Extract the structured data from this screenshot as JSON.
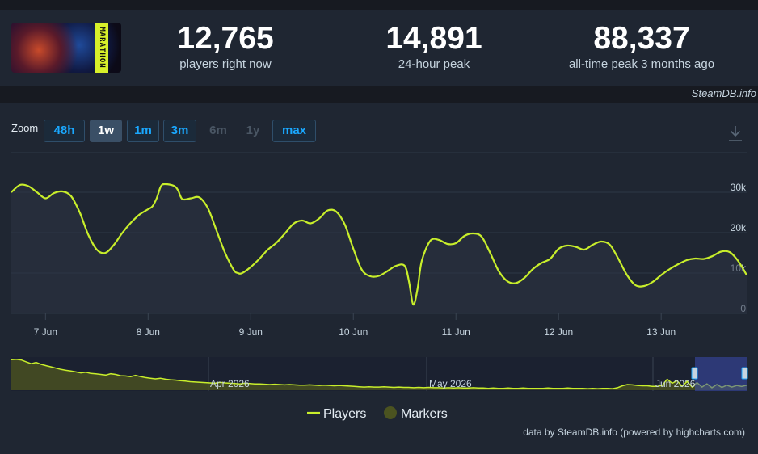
{
  "stats": [
    {
      "value": "12,765",
      "label": "players right now"
    },
    {
      "value": "14,891",
      "label": "24-hour peak"
    },
    {
      "value": "88,337",
      "label": "all-time peak 3 months ago"
    }
  ],
  "game": {
    "logo_text": "MARATHON"
  },
  "credit_top": "SteamDB.info",
  "zoom": {
    "label": "Zoom",
    "buttons": [
      {
        "label": "48h",
        "state": "normal"
      },
      {
        "label": "1w",
        "state": "active"
      },
      {
        "label": "1m",
        "state": "normal"
      },
      {
        "label": "3m",
        "state": "normal"
      },
      {
        "label": "6m",
        "state": "disabled"
      },
      {
        "label": "1y",
        "state": "disabled"
      },
      {
        "label": "max",
        "state": "normal"
      }
    ]
  },
  "colors": {
    "series": "#c8ee2b",
    "grid": "#2e3846",
    "navigator_fill": "#4b5320",
    "navigator_window": "#3d4fb0",
    "markers": "#4b5320",
    "link": "#1aa8ff"
  },
  "chart_data": {
    "type": "line",
    "title": "",
    "xlabel": "",
    "ylabel": "",
    "ylim": [
      0,
      30000
    ],
    "yticks": [
      0,
      10000,
      20000,
      30000
    ],
    "ytick_labels": [
      "0",
      "10k",
      "20k",
      "30k"
    ],
    "grid": true,
    "x_start_hour": -8,
    "x_end_hour": 164,
    "xtick_hours": [
      0,
      24,
      48,
      72,
      96,
      120,
      144
    ],
    "xtick_labels": [
      "7 Jun",
      "8 Jun",
      "9 Jun",
      "10 Jun",
      "11 Jun",
      "12 Jun",
      "13 Jun"
    ],
    "legend_position": "bottom-center",
    "legend": [
      {
        "name": "Players",
        "kind": "line"
      },
      {
        "name": "Markers",
        "kind": "dot"
      }
    ],
    "series": [
      {
        "name": "Players",
        "points": [
          [
            -8,
            30000
          ],
          [
            -6,
            31800
          ],
          [
            -4,
            31500
          ],
          [
            -2,
            30000
          ],
          [
            0,
            28500
          ],
          [
            2,
            29800
          ],
          [
            4,
            30200
          ],
          [
            6,
            29000
          ],
          [
            8,
            25000
          ],
          [
            10,
            19500
          ],
          [
            12,
            15800
          ],
          [
            14,
            15000
          ],
          [
            16,
            17000
          ],
          [
            18,
            20000
          ],
          [
            20,
            22500
          ],
          [
            22,
            24500
          ],
          [
            24,
            25800
          ],
          [
            25,
            26500
          ],
          [
            26,
            28500
          ],
          [
            27,
            31500
          ],
          [
            28,
            32000
          ],
          [
            30,
            31600
          ],
          [
            31,
            30500
          ],
          [
            32,
            28300
          ],
          [
            34,
            28500
          ],
          [
            36,
            28700
          ],
          [
            38,
            26000
          ],
          [
            40,
            20500
          ],
          [
            42,
            15000
          ],
          [
            44,
            10800
          ],
          [
            45,
            10000
          ],
          [
            46,
            10000
          ],
          [
            48,
            11500
          ],
          [
            50,
            13500
          ],
          [
            52,
            15800
          ],
          [
            54,
            17500
          ],
          [
            56,
            19800
          ],
          [
            58,
            22200
          ],
          [
            60,
            23000
          ],
          [
            62,
            22300
          ],
          [
            64,
            23500
          ],
          [
            66,
            25500
          ],
          [
            68,
            25200
          ],
          [
            70,
            22000
          ],
          [
            72,
            16000
          ],
          [
            74,
            10800
          ],
          [
            76,
            9200
          ],
          [
            78,
            9300
          ],
          [
            80,
            10500
          ],
          [
            82,
            11800
          ],
          [
            84,
            11800
          ],
          [
            85,
            8000
          ],
          [
            86,
            2200
          ],
          [
            87,
            6000
          ],
          [
            88,
            13000
          ],
          [
            90,
            18000
          ],
          [
            92,
            18200
          ],
          [
            94,
            17200
          ],
          [
            96,
            17400
          ],
          [
            98,
            19200
          ],
          [
            100,
            19800
          ],
          [
            102,
            19000
          ],
          [
            104,
            15000
          ],
          [
            106,
            10500
          ],
          [
            108,
            8000
          ],
          [
            110,
            7500
          ],
          [
            112,
            8800
          ],
          [
            114,
            11000
          ],
          [
            116,
            12500
          ],
          [
            118,
            13500
          ],
          [
            120,
            16000
          ],
          [
            122,
            16800
          ],
          [
            124,
            16500
          ],
          [
            126,
            15800
          ],
          [
            128,
            17000
          ],
          [
            130,
            17800
          ],
          [
            132,
            17000
          ],
          [
            134,
            13500
          ],
          [
            136,
            9500
          ],
          [
            138,
            7000
          ],
          [
            140,
            6800
          ],
          [
            142,
            7800
          ],
          [
            144,
            9500
          ],
          [
            146,
            11000
          ],
          [
            148,
            12200
          ],
          [
            150,
            13200
          ],
          [
            152,
            13600
          ],
          [
            154,
            13500
          ],
          [
            156,
            14200
          ],
          [
            158,
            15300
          ],
          [
            160,
            15200
          ],
          [
            162,
            13000
          ],
          [
            164,
            9500
          ],
          [
            166,
            7200
          ],
          [
            168,
            6600
          ],
          [
            170,
            8000
          ],
          [
            172,
            10000
          ],
          [
            174,
            11500
          ],
          [
            176,
            12700
          ]
        ]
      }
    ]
  },
  "navigator": {
    "labels": [
      "Apr 2026",
      "May 2026",
      "Jun 2026"
    ],
    "points": [
      [
        0,
        0.97
      ],
      [
        1,
        0.98
      ],
      [
        2,
        0.96
      ],
      [
        3,
        0.9
      ],
      [
        4,
        0.84
      ],
      [
        5,
        0.88
      ],
      [
        6,
        0.82
      ],
      [
        7,
        0.78
      ],
      [
        8,
        0.74
      ],
      [
        9,
        0.7
      ],
      [
        10,
        0.66
      ],
      [
        11,
        0.63
      ],
      [
        12,
        0.61
      ],
      [
        13,
        0.58
      ],
      [
        14,
        0.55
      ],
      [
        15,
        0.57
      ],
      [
        16,
        0.53
      ],
      [
        17,
        0.52
      ],
      [
        18,
        0.5
      ],
      [
        19,
        0.48
      ],
      [
        20,
        0.52
      ],
      [
        21,
        0.5
      ],
      [
        22,
        0.46
      ],
      [
        23,
        0.45
      ],
      [
        24,
        0.43
      ],
      [
        25,
        0.47
      ],
      [
        26,
        0.43
      ],
      [
        27,
        0.4
      ],
      [
        28,
        0.38
      ],
      [
        29,
        0.36
      ],
      [
        30,
        0.38
      ],
      [
        31,
        0.35
      ],
      [
        32,
        0.33
      ],
      [
        33,
        0.32
      ],
      [
        34,
        0.3
      ],
      [
        35,
        0.29
      ],
      [
        36,
        0.27
      ],
      [
        37,
        0.26
      ],
      [
        38,
        0.25
      ],
      [
        39,
        0.24
      ],
      [
        40,
        0.23
      ],
      [
        41,
        0.22
      ],
      [
        42,
        0.25
      ],
      [
        43,
        0.23
      ],
      [
        44,
        0.22
      ],
      [
        45,
        0.21
      ],
      [
        46,
        0.2
      ],
      [
        47,
        0.22
      ],
      [
        48,
        0.21
      ],
      [
        49,
        0.2
      ],
      [
        50,
        0.2
      ],
      [
        51,
        0.19
      ],
      [
        52,
        0.18
      ],
      [
        53,
        0.19
      ],
      [
        54,
        0.18
      ],
      [
        55,
        0.17
      ],
      [
        56,
        0.18
      ],
      [
        57,
        0.17
      ],
      [
        58,
        0.16
      ],
      [
        59,
        0.16
      ],
      [
        60,
        0.17
      ],
      [
        61,
        0.16
      ],
      [
        62,
        0.15
      ],
      [
        63,
        0.16
      ],
      [
        64,
        0.15
      ],
      [
        65,
        0.14
      ],
      [
        66,
        0.15
      ],
      [
        67,
        0.14
      ],
      [
        68,
        0.13
      ],
      [
        69,
        0.12
      ],
      [
        70,
        0.11
      ],
      [
        71,
        0.1
      ],
      [
        72,
        0.11
      ],
      [
        73,
        0.1
      ],
      [
        74,
        0.1
      ],
      [
        75,
        0.11
      ],
      [
        76,
        0.1
      ],
      [
        77,
        0.09
      ],
      [
        78,
        0.1
      ],
      [
        79,
        0.09
      ],
      [
        80,
        0.09
      ],
      [
        81,
        0.08
      ],
      [
        82,
        0.09
      ],
      [
        83,
        0.08
      ],
      [
        84,
        0.09
      ],
      [
        85,
        0.08
      ],
      [
        86,
        0.08
      ],
      [
        87,
        0.07
      ],
      [
        88,
        0.08
      ],
      [
        89,
        0.07
      ],
      [
        90,
        0.08
      ],
      [
        91,
        0.07
      ],
      [
        92,
        0.07
      ],
      [
        93,
        0.08
      ],
      [
        94,
        0.07
      ],
      [
        95,
        0.07
      ],
      [
        96,
        0.06
      ],
      [
        97,
        0.07
      ],
      [
        98,
        0.06
      ],
      [
        99,
        0.06
      ],
      [
        100,
        0.07
      ],
      [
        101,
        0.06
      ],
      [
        102,
        0.06
      ],
      [
        103,
        0.07
      ],
      [
        104,
        0.06
      ],
      [
        105,
        0.06
      ],
      [
        106,
        0.06
      ],
      [
        107,
        0.06
      ],
      [
        108,
        0.07
      ],
      [
        109,
        0.06
      ],
      [
        110,
        0.06
      ],
      [
        111,
        0.06
      ],
      [
        112,
        0.07
      ],
      [
        113,
        0.06
      ],
      [
        114,
        0.06
      ],
      [
        115,
        0.06
      ],
      [
        116,
        0.05
      ],
      [
        117,
        0.06
      ],
      [
        118,
        0.05
      ],
      [
        119,
        0.06
      ],
      [
        120,
        0.06
      ],
      [
        121,
        0.05
      ],
      [
        122,
        0.08
      ],
      [
        123,
        0.14
      ],
      [
        124,
        0.18
      ],
      [
        125,
        0.17
      ],
      [
        126,
        0.15
      ],
      [
        127,
        0.14
      ],
      [
        128,
        0.14
      ],
      [
        129,
        0.12
      ],
      [
        130,
        0.12
      ],
      [
        131,
        0.15
      ],
      [
        132,
        0.35
      ],
      [
        133,
        0.22
      ],
      [
        134,
        0.3
      ],
      [
        135,
        0.12
      ],
      [
        136,
        0.28
      ],
      [
        137,
        0.1
      ],
      [
        138,
        0.24
      ],
      [
        139,
        0.1
      ],
      [
        140,
        0.2
      ],
      [
        141,
        0.08
      ],
      [
        142,
        0.18
      ],
      [
        143,
        0.09
      ],
      [
        144,
        0.16
      ],
      [
        145,
        0.1
      ],
      [
        146,
        0.15
      ],
      [
        147,
        0.12
      ],
      [
        148,
        0.16
      ]
    ]
  },
  "legend_labels": {
    "players": "Players",
    "markers": "Markers"
  },
  "credit_bottom": "data by SteamDB.info (powered by highcharts.com)"
}
